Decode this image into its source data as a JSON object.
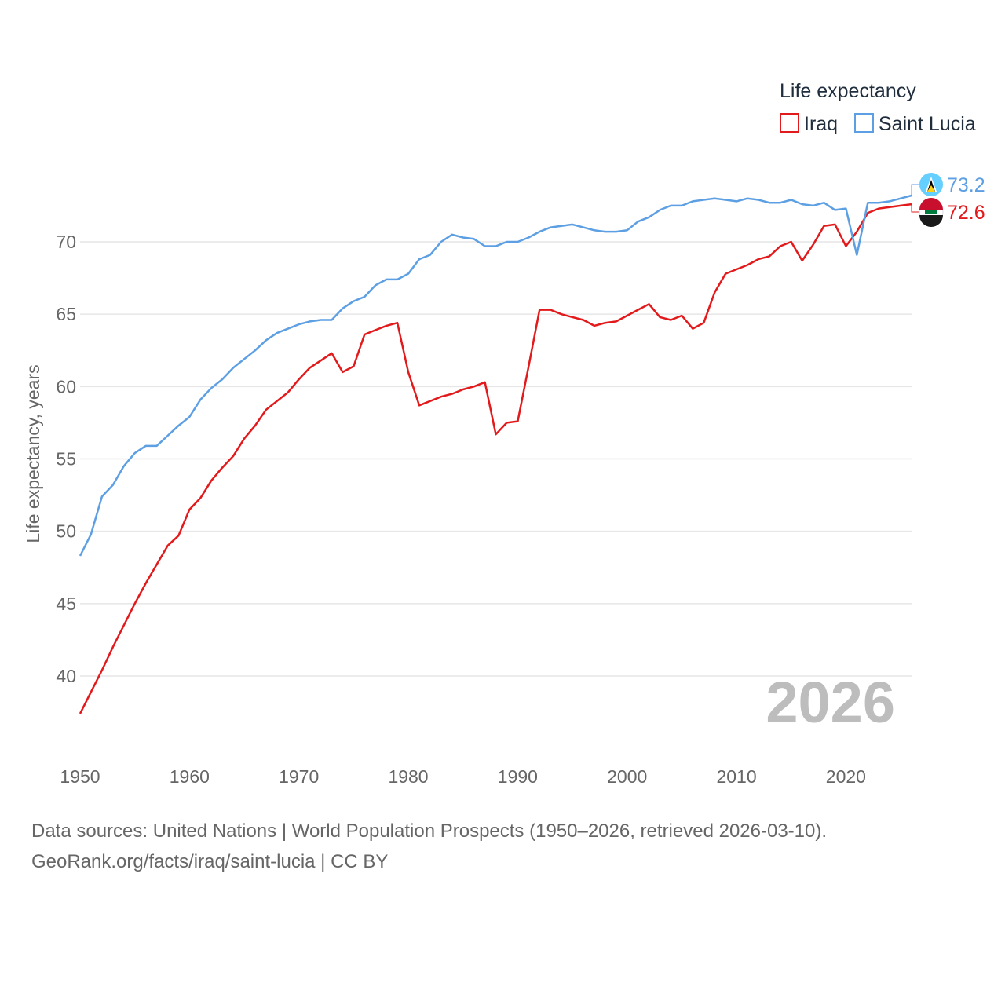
{
  "chart_data": {
    "type": "line",
    "ylabel": "Life expectancy, years",
    "xlabel": "",
    "xlim": [
      1950,
      2026
    ],
    "ylim": [
      34.5,
      73.5
    ],
    "yticks": [
      40,
      45,
      50,
      55,
      60,
      65,
      70
    ],
    "xticks": [
      1950,
      1960,
      1970,
      1980,
      1990,
      2000,
      2010,
      2020
    ],
    "grid": true,
    "legend_title": "Life expectancy",
    "legend_position": "top-right",
    "year_watermark": "2026",
    "series": [
      {
        "name": "Iraq",
        "color": "#e31a1c",
        "end_label": "72.6",
        "flag_icon": "iraq-flag-icon",
        "x": [
          1950,
          1951,
          1952,
          1953,
          1954,
          1955,
          1956,
          1957,
          1958,
          1959,
          1960,
          1961,
          1962,
          1963,
          1964,
          1965,
          1966,
          1967,
          1968,
          1969,
          1970,
          1971,
          1972,
          1973,
          1974,
          1975,
          1976,
          1977,
          1978,
          1979,
          1980,
          1981,
          1982,
          1983,
          1984,
          1985,
          1986,
          1987,
          1988,
          1989,
          1990,
          1991,
          1992,
          1993,
          1994,
          1995,
          1996,
          1997,
          1998,
          1999,
          2000,
          2001,
          2002,
          2003,
          2004,
          2005,
          2006,
          2007,
          2008,
          2009,
          2010,
          2011,
          2012,
          2013,
          2014,
          2015,
          2016,
          2017,
          2018,
          2019,
          2020,
          2021,
          2022,
          2023,
          2024,
          2025,
          2026
        ],
        "values": [
          37.4,
          38.9,
          40.4,
          42.0,
          43.5,
          45.0,
          46.4,
          47.7,
          49.0,
          49.7,
          51.5,
          52.3,
          53.5,
          54.4,
          55.2,
          56.4,
          57.3,
          58.4,
          59.0,
          59.6,
          60.5,
          61.3,
          61.8,
          62.3,
          61.0,
          61.4,
          63.6,
          63.9,
          64.2,
          64.4,
          61.0,
          58.7,
          59.0,
          59.3,
          59.5,
          59.8,
          60.0,
          60.3,
          56.7,
          57.5,
          57.6,
          61.4,
          65.3,
          65.3,
          65.0,
          64.8,
          64.6,
          64.2,
          64.4,
          64.5,
          64.9,
          65.3,
          65.7,
          64.8,
          64.6,
          64.9,
          64.0,
          64.4,
          66.5,
          67.8,
          68.1,
          68.4,
          68.8,
          69.0,
          69.7,
          70.0,
          68.7,
          69.8,
          71.1,
          71.2,
          69.7,
          70.7,
          72.0,
          72.3,
          72.4,
          72.5,
          72.6
        ]
      },
      {
        "name": "Saint Lucia",
        "color": "#5d9fe3",
        "end_label": "73.2",
        "flag_icon": "saint-lucia-flag-icon",
        "x": [
          1950,
          1951,
          1952,
          1953,
          1954,
          1955,
          1956,
          1957,
          1958,
          1959,
          1960,
          1961,
          1962,
          1963,
          1964,
          1965,
          1966,
          1967,
          1968,
          1969,
          1970,
          1971,
          1972,
          1973,
          1974,
          1975,
          1976,
          1977,
          1978,
          1979,
          1980,
          1981,
          1982,
          1983,
          1984,
          1985,
          1986,
          1987,
          1988,
          1989,
          1990,
          1991,
          1992,
          1993,
          1994,
          1995,
          1996,
          1997,
          1998,
          1999,
          2000,
          2001,
          2002,
          2003,
          2004,
          2005,
          2006,
          2007,
          2008,
          2009,
          2010,
          2011,
          2012,
          2013,
          2014,
          2015,
          2016,
          2017,
          2018,
          2019,
          2020,
          2021,
          2022,
          2023,
          2024,
          2025,
          2026
        ],
        "values": [
          48.3,
          49.8,
          52.4,
          53.2,
          54.5,
          55.4,
          55.9,
          55.9,
          56.6,
          57.3,
          57.9,
          59.1,
          59.9,
          60.5,
          61.3,
          61.9,
          62.5,
          63.2,
          63.7,
          64.0,
          64.3,
          64.5,
          64.6,
          64.6,
          65.4,
          65.9,
          66.2,
          67.0,
          67.4,
          67.4,
          67.8,
          68.8,
          69.1,
          70.0,
          70.5,
          70.3,
          70.2,
          69.7,
          69.7,
          70.0,
          70.0,
          70.3,
          70.7,
          71.0,
          71.1,
          71.2,
          71.0,
          70.8,
          70.7,
          70.7,
          70.8,
          71.4,
          71.7,
          72.2,
          72.5,
          72.5,
          72.8,
          72.9,
          73.0,
          72.9,
          72.8,
          73.0,
          72.9,
          72.7,
          72.7,
          72.9,
          72.6,
          72.5,
          72.7,
          72.2,
          72.3,
          69.1,
          72.7,
          72.7,
          72.8,
          73.0,
          73.2
        ]
      }
    ]
  },
  "footer": {
    "source": "Data sources: United Nations | World Population Prospects (1950–2026, retrieved 2026-03-10).",
    "attribution": "GeoRank.org/facts/iraq/saint-lucia | CC BY"
  }
}
